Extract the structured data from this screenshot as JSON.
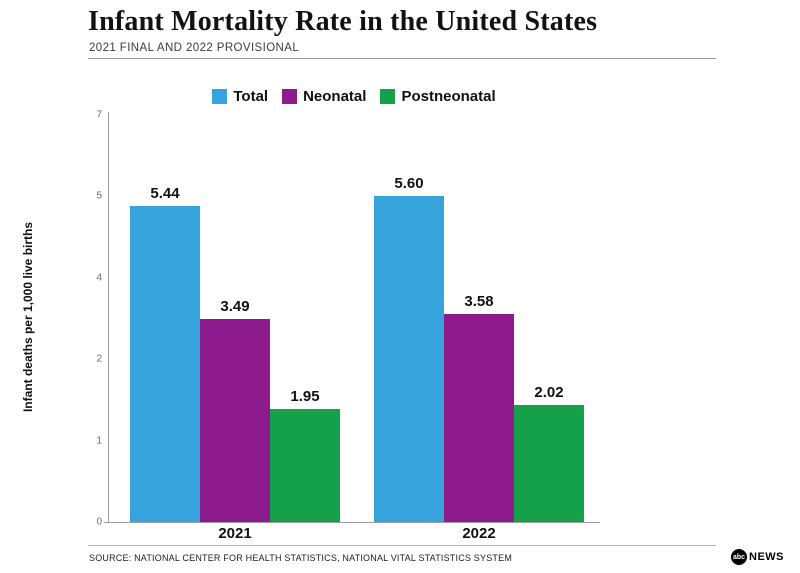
{
  "header": {
    "title": "Infant Mortality Rate in the United States",
    "subtitle": "2021 FINAL AND 2022 PROVISIONAL"
  },
  "chart_data": {
    "type": "bar",
    "categories": [
      "2021",
      "2022"
    ],
    "series": [
      {
        "name": "Total",
        "color": "#36A3DD",
        "values": [
          5.44,
          5.6
        ]
      },
      {
        "name": "Neonatal",
        "color": "#8E1B8E",
        "values": [
          3.49,
          3.58
        ]
      },
      {
        "name": "Postneonatal",
        "color": "#14A149",
        "values": [
          1.95,
          2.02
        ]
      }
    ],
    "value_labels": [
      [
        "5.44",
        "3.49",
        "1.95"
      ],
      [
        "5.60",
        "3.58",
        "2.02"
      ]
    ],
    "title": "Infant Mortality Rate in the United States",
    "subtitle": "2021 FINAL AND 2022 PROVISIONAL",
    "xlabel": "",
    "ylabel": "Infant deaths per 1,000 live births",
    "ylim": [
      0,
      7
    ],
    "ytick_labels_top_to_bottom": [
      "7",
      "5",
      "4",
      "2",
      "1",
      "0"
    ],
    "grid": false,
    "legend_position": "top"
  },
  "footer": {
    "source": "SOURCE: NATIONAL CENTER FOR HEALTH STATISTICS, NATIONAL VITAL STATISTICS SYSTEM",
    "brand_abc": "abc",
    "brand_news": "NEWS"
  }
}
